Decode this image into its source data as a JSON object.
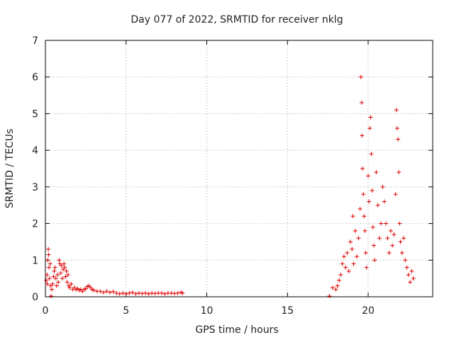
{
  "chart_data": {
    "type": "scatter",
    "title": "Day 077 of 2022, SRMTID for receiver nklg",
    "xlabel": "GPS time / hours",
    "ylabel": "SRMTID / TECUs",
    "xlim": [
      0,
      24
    ],
    "ylim": [
      0,
      7
    ],
    "xticks": [
      0,
      5,
      10,
      15,
      20
    ],
    "yticks": [
      0,
      1,
      2,
      3,
      4,
      5,
      6,
      7
    ],
    "grid": true,
    "marker": "plus",
    "color": "#e00000",
    "series": [
      {
        "name": "SRMTID",
        "points": [
          [
            0.05,
            0.45
          ],
          [
            0.1,
            0.6
          ],
          [
            0.12,
            0.35
          ],
          [
            0.15,
            1.0
          ],
          [
            0.18,
            1.3
          ],
          [
            0.2,
            1.15
          ],
          [
            0.22,
            0.8
          ],
          [
            0.25,
            0.5
          ],
          [
            0.3,
            0.9
          ],
          [
            0.32,
            0.3
          ],
          [
            0.35,
            0.02
          ],
          [
            0.4,
            0.2
          ],
          [
            0.45,
            0.35
          ],
          [
            0.5,
            0.55
          ],
          [
            0.55,
            0.7
          ],
          [
            0.6,
            0.8
          ],
          [
            0.65,
            0.5
          ],
          [
            0.7,
            0.3
          ],
          [
            0.75,
            0.6
          ],
          [
            0.8,
            0.4
          ],
          [
            0.85,
            1.0
          ],
          [
            0.9,
            0.9
          ],
          [
            0.95,
            0.65
          ],
          [
            1.0,
            0.85
          ],
          [
            1.05,
            0.5
          ],
          [
            1.1,
            0.75
          ],
          [
            1.15,
            0.9
          ],
          [
            1.2,
            0.8
          ],
          [
            1.25,
            0.55
          ],
          [
            1.3,
            0.7
          ],
          [
            1.35,
            0.4
          ],
          [
            1.4,
            0.6
          ],
          [
            1.45,
            0.3
          ],
          [
            1.5,
            0.25
          ],
          [
            1.6,
            0.35
          ],
          [
            1.7,
            0.2
          ],
          [
            1.8,
            0.25
          ],
          [
            1.9,
            0.2
          ],
          [
            2.0,
            0.22
          ],
          [
            2.1,
            0.18
          ],
          [
            2.2,
            0.2
          ],
          [
            2.3,
            0.15
          ],
          [
            2.4,
            0.2
          ],
          [
            2.5,
            0.22
          ],
          [
            2.6,
            0.28
          ],
          [
            2.7,
            0.3
          ],
          [
            2.8,
            0.25
          ],
          [
            2.9,
            0.2
          ],
          [
            3.0,
            0.18
          ],
          [
            3.2,
            0.15
          ],
          [
            3.4,
            0.15
          ],
          [
            3.6,
            0.12
          ],
          [
            3.8,
            0.15
          ],
          [
            4.0,
            0.12
          ],
          [
            4.2,
            0.14
          ],
          [
            4.4,
            0.1
          ],
          [
            4.6,
            0.08
          ],
          [
            4.8,
            0.1
          ],
          [
            5.0,
            0.08
          ],
          [
            5.2,
            0.1
          ],
          [
            5.4,
            0.12
          ],
          [
            5.6,
            0.08
          ],
          [
            5.8,
            0.1
          ],
          [
            6.0,
            0.09
          ],
          [
            6.2,
            0.1
          ],
          [
            6.4,
            0.08
          ],
          [
            6.6,
            0.1
          ],
          [
            6.8,
            0.09
          ],
          [
            7.0,
            0.1
          ],
          [
            7.2,
            0.1
          ],
          [
            7.4,
            0.08
          ],
          [
            7.6,
            0.1
          ],
          [
            7.8,
            0.1
          ],
          [
            8.0,
            0.09
          ],
          [
            8.2,
            0.1
          ],
          [
            8.4,
            0.12
          ],
          [
            8.5,
            0.1
          ],
          [
            17.6,
            0.02
          ],
          [
            17.8,
            0.25
          ],
          [
            18.0,
            0.2
          ],
          [
            18.1,
            0.3
          ],
          [
            18.2,
            0.45
          ],
          [
            18.3,
            0.6
          ],
          [
            18.4,
            0.9
          ],
          [
            18.5,
            1.1
          ],
          [
            18.6,
            0.8
          ],
          [
            18.7,
            1.2
          ],
          [
            18.8,
            0.7
          ],
          [
            18.9,
            1.5
          ],
          [
            19.0,
            1.3
          ],
          [
            19.05,
            2.2
          ],
          [
            19.1,
            0.9
          ],
          [
            19.2,
            1.8
          ],
          [
            19.3,
            1.1
          ],
          [
            19.4,
            1.6
          ],
          [
            19.5,
            2.4
          ],
          [
            19.55,
            6.0
          ],
          [
            19.6,
            5.3
          ],
          [
            19.62,
            4.4
          ],
          [
            19.65,
            3.5
          ],
          [
            19.7,
            2.8
          ],
          [
            19.75,
            2.2
          ],
          [
            19.8,
            1.8
          ],
          [
            19.85,
            1.2
          ],
          [
            19.9,
            0.8
          ],
          [
            20.0,
            3.3
          ],
          [
            20.05,
            2.6
          ],
          [
            20.1,
            4.6
          ],
          [
            20.15,
            4.9
          ],
          [
            20.2,
            3.9
          ],
          [
            20.25,
            2.9
          ],
          [
            20.3,
            1.9
          ],
          [
            20.35,
            1.4
          ],
          [
            20.4,
            1.0
          ],
          [
            20.5,
            3.4
          ],
          [
            20.6,
            2.5
          ],
          [
            20.7,
            1.6
          ],
          [
            20.8,
            2.0
          ],
          [
            20.9,
            3.0
          ],
          [
            21.0,
            2.6
          ],
          [
            21.1,
            2.0
          ],
          [
            21.2,
            1.6
          ],
          [
            21.3,
            1.2
          ],
          [
            21.4,
            1.8
          ],
          [
            21.5,
            1.4
          ],
          [
            21.6,
            1.7
          ],
          [
            21.7,
            2.8
          ],
          [
            21.75,
            5.1
          ],
          [
            21.8,
            4.6
          ],
          [
            21.85,
            4.3
          ],
          [
            21.9,
            3.4
          ],
          [
            21.95,
            2.0
          ],
          [
            22.0,
            1.5
          ],
          [
            22.1,
            1.2
          ],
          [
            22.2,
            1.6
          ],
          [
            22.3,
            1.0
          ],
          [
            22.4,
            0.8
          ],
          [
            22.5,
            0.6
          ],
          [
            22.6,
            0.4
          ],
          [
            22.7,
            0.7
          ],
          [
            22.8,
            0.5
          ]
        ]
      }
    ]
  }
}
